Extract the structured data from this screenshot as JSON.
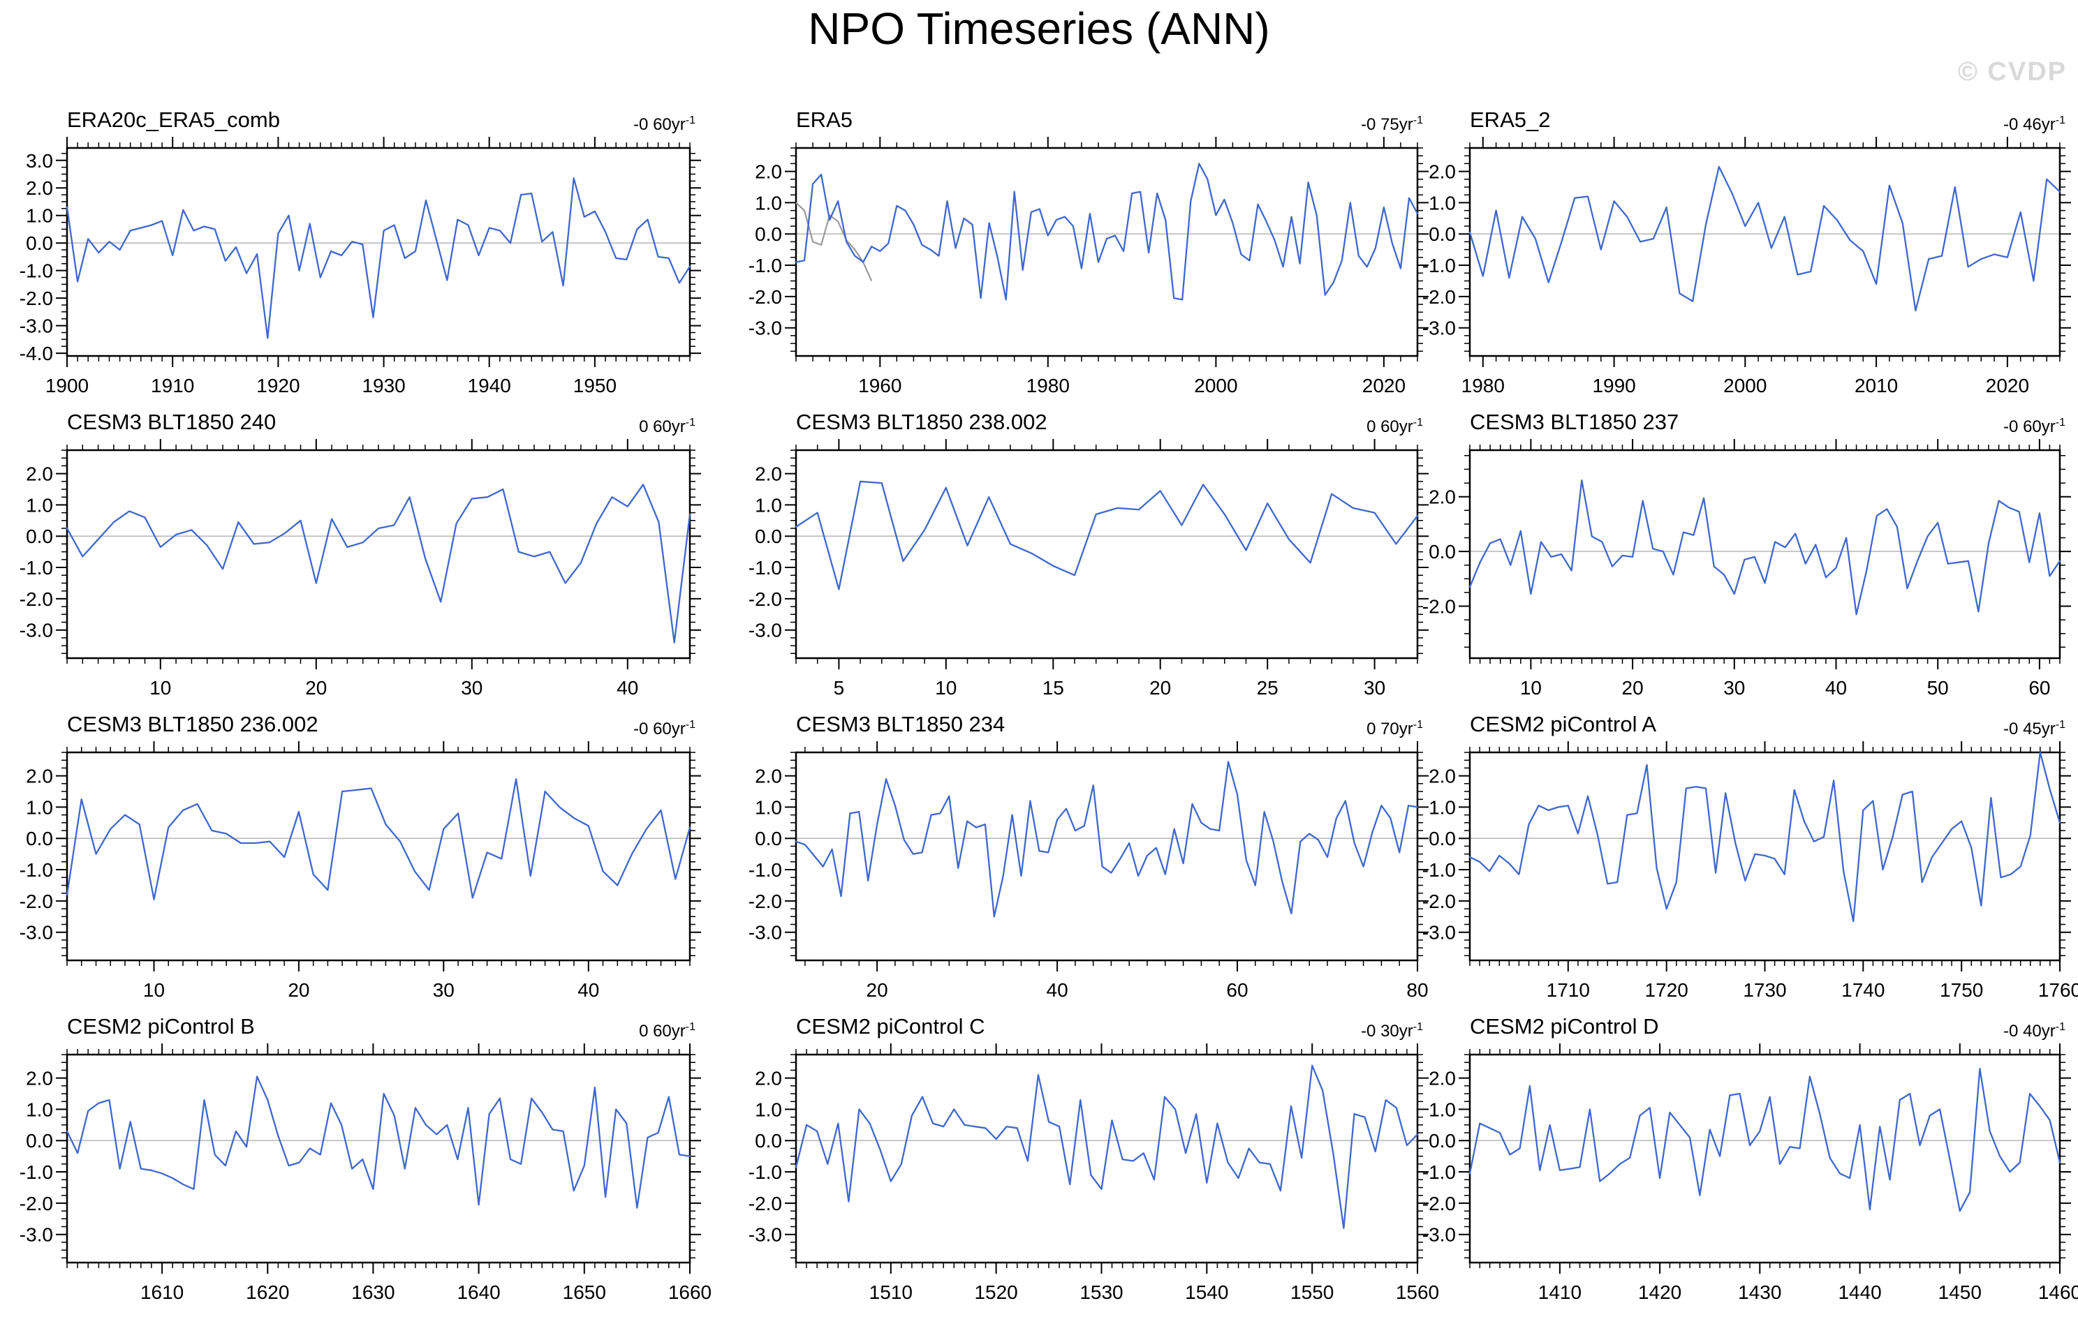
{
  "page": {
    "title": "NPO Timeseries (ANN)",
    "watermark": "© CVDP"
  },
  "chart_data": [
    {
      "type": "line",
      "title": "ERA20c_ERA5_comb",
      "trend_text": "-0 60yr",
      "trend_sup": "-1",
      "x_start": 1900,
      "x_end": 1959,
      "xticks": [
        1900,
        1910,
        1920,
        1930,
        1940,
        1950
      ],
      "x_minor": 1,
      "yticks": [
        3,
        2,
        1,
        0,
        -1,
        -2,
        -3,
        -4
      ],
      "y_minor": 0.25,
      "ylim": [
        -4.1,
        3.45
      ],
      "grid": false,
      "zero_line": true,
      "line_color": "#3E68CE",
      "values": [
        1.3,
        -1.4,
        0.15,
        -0.35,
        0.05,
        -0.25,
        0.45,
        0.55,
        0.65,
        0.8,
        -0.45,
        1.2,
        0.45,
        0.6,
        0.5,
        -0.65,
        -0.15,
        -1.1,
        -0.4,
        -3.45,
        0.35,
        1.0,
        -1.0,
        0.7,
        -1.25,
        -0.3,
        -0.45,
        0.05,
        -0.05,
        -2.7,
        0.45,
        0.65,
        -0.55,
        -0.3,
        1.55,
        0.1,
        -1.35,
        0.85,
        0.65,
        -0.45,
        0.55,
        0.45,
        0.0,
        1.75,
        1.8,
        0.05,
        0.4,
        -1.55,
        2.35,
        0.95,
        1.15,
        0.4,
        -0.55,
        -0.6,
        0.5,
        0.85,
        -0.5,
        -0.55,
        -1.45,
        -0.85
      ]
    },
    {
      "type": "line",
      "title": "ERA5",
      "trend_text": "-0 75yr",
      "trend_sup": "-1",
      "x_start": 1950,
      "x_end": 2024,
      "xticks": [
        1960,
        1980,
        2000,
        2020
      ],
      "x_minor": 2,
      "yticks": [
        2,
        1,
        0,
        -1,
        -2,
        -3
      ],
      "y_minor": 0.25,
      "ylim": [
        -3.9,
        2.75
      ],
      "grid": false,
      "zero_line": true,
      "line_color": "#3E68CE",
      "values": [
        -0.9,
        -0.85,
        1.6,
        1.9,
        0.45,
        1.05,
        -0.25,
        -0.7,
        -0.9,
        -0.4,
        -0.55,
        -0.3,
        0.9,
        0.75,
        0.3,
        -0.35,
        -0.5,
        -0.7,
        1.05,
        -0.45,
        0.5,
        0.3,
        -2.05,
        0.35,
        -0.75,
        -2.1,
        1.35,
        -1.15,
        0.7,
        0.8,
        -0.05,
        0.45,
        0.55,
        0.25,
        -1.1,
        0.65,
        -0.9,
        -0.15,
        -0.05,
        -0.55,
        1.3,
        1.35,
        -0.6,
        1.3,
        0.45,
        -2.05,
        -2.1,
        1.05,
        2.25,
        1.75,
        0.6,
        1.1,
        0.35,
        -0.65,
        -0.85,
        0.95,
        0.4,
        -0.2,
        -1.05,
        0.55,
        -0.95,
        1.65,
        0.6,
        -1.95,
        -1.55,
        -0.85,
        1.0,
        -0.7,
        -1.05,
        -0.45,
        0.85,
        -0.3,
        -1.1,
        1.15,
        0.65
      ],
      "extra_series": {
        "name": "overlap-segment",
        "color": "#9a9a9a",
        "x_start": 1950,
        "values": [
          1.0,
          0.75,
          -0.25,
          -0.35,
          0.6,
          0.4,
          -0.2,
          -0.5,
          -0.9,
          -1.5
        ]
      }
    },
    {
      "type": "line",
      "title": "ERA5_2",
      "trend_text": "-0 46yr",
      "trend_sup": "-1",
      "x_start": 1979,
      "x_end": 2024,
      "xticks": [
        1980,
        1990,
        2000,
        2010,
        2020
      ],
      "x_minor": 1,
      "yticks": [
        2,
        1,
        0,
        -1,
        -2,
        -3
      ],
      "y_minor": 0.25,
      "ylim": [
        -3.9,
        2.75
      ],
      "grid": false,
      "zero_line": true,
      "line_color": "#3E68CE",
      "values": [
        0.05,
        -1.35,
        0.75,
        -1.4,
        0.55,
        -0.15,
        -1.55,
        -0.25,
        1.15,
        1.2,
        -0.5,
        1.05,
        0.55,
        -0.25,
        -0.15,
        0.85,
        -1.9,
        -2.15,
        0.3,
        2.15,
        1.3,
        0.25,
        1.0,
        -0.45,
        0.55,
        -1.3,
        -1.2,
        0.9,
        0.45,
        -0.2,
        -0.55,
        -1.6,
        1.55,
        0.35,
        -2.45,
        -0.8,
        -0.7,
        1.5,
        -1.05,
        -0.8,
        -0.65,
        -0.75,
        0.7,
        -1.5,
        1.75,
        1.35
      ]
    },
    {
      "type": "line",
      "title": "CESM3 BLT1850 240",
      "trend_text": "0 60yr",
      "trend_sup": "-1",
      "x_start": 4,
      "x_end": 44,
      "xticks": [
        10,
        20,
        30,
        40
      ],
      "x_minor": 1,
      "yticks": [
        2,
        1,
        0,
        -1,
        -2,
        -3
      ],
      "y_minor": 0.25,
      "ylim": [
        -3.9,
        2.75
      ],
      "grid": false,
      "zero_line": true,
      "line_color": "#3E68CE",
      "values": [
        0.25,
        -0.65,
        -0.1,
        0.45,
        0.8,
        0.6,
        -0.35,
        0.05,
        0.2,
        -0.3,
        -1.05,
        0.45,
        -0.25,
        -0.2,
        0.1,
        0.5,
        -1.5,
        0.55,
        -0.35,
        -0.2,
        0.25,
        0.35,
        1.25,
        -0.7,
        -2.1,
        0.4,
        1.2,
        1.25,
        1.5,
        -0.5,
        -0.65,
        -0.5,
        -1.5,
        -0.85,
        0.4,
        1.25,
        0.95,
        1.65,
        0.45,
        -3.4,
        0.7
      ]
    },
    {
      "type": "line",
      "title": "CESM3 BLT1850 238.002",
      "trend_text": "0 60yr",
      "trend_sup": "-1",
      "x_start": 3,
      "x_end": 32,
      "xticks": [
        5,
        10,
        15,
        20,
        25,
        30
      ],
      "x_minor": 1,
      "yticks": [
        2,
        1,
        0,
        -1,
        -2,
        -3
      ],
      "y_minor": 0.25,
      "ylim": [
        -3.9,
        2.75
      ],
      "grid": false,
      "zero_line": true,
      "line_color": "#3E68CE",
      "values": [
        0.3,
        0.75,
        -1.7,
        1.75,
        1.7,
        -0.8,
        0.2,
        1.55,
        -0.3,
        1.25,
        -0.25,
        -0.55,
        -0.95,
        -1.25,
        0.7,
        0.9,
        0.85,
        1.45,
        0.35,
        1.65,
        0.7,
        -0.45,
        1.05,
        -0.1,
        -0.85,
        1.35,
        0.9,
        0.75,
        -0.25,
        0.65
      ]
    },
    {
      "type": "line",
      "title": "CESM3 BLT1850 237",
      "trend_text": "-0 60yr",
      "trend_sup": "-1",
      "x_start": 4,
      "x_end": 62,
      "xticks": [
        10,
        20,
        30,
        40,
        50,
        60
      ],
      "x_minor": 1,
      "yticks": [
        2,
        0,
        -2
      ],
      "y_minor": 0.5,
      "ylim": [
        -3.9,
        3.7
      ],
      "grid": false,
      "zero_line": true,
      "line_color": "#3E68CE",
      "values": [
        -1.3,
        -0.4,
        0.3,
        0.45,
        -0.5,
        0.75,
        -1.55,
        0.35,
        -0.2,
        -0.1,
        -0.7,
        2.6,
        0.55,
        0.35,
        -0.55,
        -0.15,
        -0.2,
        1.85,
        0.1,
        0.0,
        -0.85,
        0.7,
        0.6,
        1.95,
        -0.55,
        -0.85,
        -1.55,
        -0.3,
        -0.2,
        -1.15,
        0.35,
        0.15,
        0.65,
        -0.45,
        0.25,
        -0.95,
        -0.6,
        0.5,
        -2.3,
        -0.7,
        1.3,
        1.55,
        0.9,
        -1.35,
        -0.35,
        0.55,
        1.05,
        -0.45,
        -0.4,
        -0.35,
        -2.2,
        0.3,
        1.85,
        1.6,
        1.45,
        -0.4,
        1.4,
        -0.9,
        -0.35
      ]
    },
    {
      "type": "line",
      "title": "CESM3 BLT1850 236.002",
      "trend_text": "-0 60yr",
      "trend_sup": "-1",
      "x_start": 4,
      "x_end": 47,
      "xticks": [
        10,
        20,
        30,
        40
      ],
      "x_minor": 1,
      "yticks": [
        2,
        1,
        0,
        -1,
        -2,
        -3
      ],
      "y_minor": 0.25,
      "ylim": [
        -3.9,
        2.75
      ],
      "grid": false,
      "zero_line": true,
      "line_color": "#3E68CE",
      "values": [
        -1.8,
        1.25,
        -0.5,
        0.3,
        0.75,
        0.45,
        -1.95,
        0.35,
        0.9,
        1.1,
        0.25,
        0.15,
        -0.15,
        -0.15,
        -0.1,
        -0.6,
        0.85,
        -1.15,
        -1.65,
        1.5,
        1.55,
        1.6,
        0.45,
        -0.1,
        -1.05,
        -1.65,
        0.3,
        0.8,
        -1.9,
        -0.45,
        -0.65,
        1.9,
        -1.2,
        1.5,
        1.0,
        0.65,
        0.4,
        -1.05,
        -1.5,
        -0.5,
        0.3,
        0.9,
        -1.3,
        0.35
      ]
    },
    {
      "type": "line",
      "title": "CESM3 BLT1850 234",
      "trend_text": "0 70yr",
      "trend_sup": "-1",
      "x_start": 11,
      "x_end": 80,
      "xticks": [
        20,
        40,
        60,
        80
      ],
      "x_minor": 2,
      "yticks": [
        2,
        1,
        0,
        -1,
        -2,
        -3
      ],
      "y_minor": 0.25,
      "ylim": [
        -3.9,
        2.75
      ],
      "grid": false,
      "zero_line": true,
      "line_color": "#3E68CE",
      "values": [
        -0.1,
        -0.2,
        -0.55,
        -0.9,
        -0.35,
        -1.85,
        0.8,
        0.85,
        -1.35,
        0.45,
        1.9,
        1.05,
        -0.05,
        -0.5,
        -0.45,
        0.75,
        0.8,
        1.35,
        -0.95,
        0.55,
        0.35,
        0.45,
        -2.5,
        -1.2,
        0.75,
        -1.2,
        1.2,
        -0.4,
        -0.45,
        0.6,
        0.95,
        0.25,
        0.4,
        1.7,
        -0.9,
        -1.1,
        -0.65,
        -0.15,
        -1.2,
        -0.55,
        -0.3,
        -1.15,
        0.3,
        -0.8,
        1.1,
        0.5,
        0.3,
        0.25,
        2.45,
        1.4,
        -0.7,
        -1.5,
        0.85,
        -0.1,
        -1.4,
        -2.4,
        -0.1,
        0.15,
        -0.05,
        -0.6,
        0.65,
        1.2,
        -0.15,
        -0.9,
        0.2,
        1.05,
        0.65,
        -0.45,
        1.05,
        1.0
      ]
    },
    {
      "type": "line",
      "title": "CESM2 piControl A",
      "trend_text": "-0 45yr",
      "trend_sup": "-1",
      "x_start": 1700,
      "x_end": 1760,
      "xticks": [
        1710,
        1720,
        1730,
        1740,
        1750,
        1760
      ],
      "x_minor": 1,
      "yticks": [
        2,
        1,
        0,
        -1,
        -2,
        -3
      ],
      "y_minor": 0.25,
      "ylim": [
        -3.9,
        2.75
      ],
      "grid": false,
      "zero_line": true,
      "line_color": "#3E68CE",
      "values": [
        -0.6,
        -0.75,
        -1.05,
        -0.55,
        -0.8,
        -1.15,
        0.45,
        1.05,
        0.9,
        1.0,
        1.05,
        0.15,
        1.35,
        0.1,
        -1.45,
        -1.4,
        0.75,
        0.8,
        2.35,
        -0.95,
        -2.25,
        -1.4,
        1.6,
        1.65,
        1.6,
        -1.1,
        1.45,
        -0.15,
        -1.35,
        -0.5,
        -0.55,
        -0.65,
        -1.15,
        1.55,
        0.55,
        -0.1,
        0.05,
        1.85,
        -1.05,
        -2.65,
        0.9,
        1.2,
        -1.0,
        0.05,
        1.4,
        1.5,
        -1.4,
        -0.6,
        -0.15,
        0.3,
        0.55,
        -0.3,
        -2.15,
        1.3,
        -1.25,
        -1.15,
        -0.9,
        0.1,
        2.75,
        1.55,
        0.5
      ]
    },
    {
      "type": "line",
      "title": "CESM2 piControl B",
      "trend_text": "0 60yr",
      "trend_sup": "-1",
      "x_start": 1601,
      "x_end": 1660,
      "xticks": [
        1610,
        1620,
        1630,
        1640,
        1650,
        1660
      ],
      "x_minor": 1,
      "yticks": [
        2,
        1,
        0,
        -1,
        -2,
        -3
      ],
      "y_minor": 0.25,
      "ylim": [
        -3.9,
        2.75
      ],
      "grid": false,
      "zero_line": true,
      "line_color": "#3E68CE",
      "values": [
        0.3,
        -0.4,
        0.95,
        1.2,
        1.3,
        -0.9,
        0.6,
        -0.9,
        -0.95,
        -1.05,
        -1.2,
        -1.4,
        -1.55,
        1.3,
        -0.45,
        -0.8,
        0.3,
        -0.2,
        2.05,
        1.3,
        0.15,
        -0.8,
        -0.7,
        -0.25,
        -0.45,
        1.2,
        0.5,
        -0.9,
        -0.6,
        -1.55,
        1.5,
        0.8,
        -0.9,
        1.05,
        0.5,
        0.2,
        0.5,
        -0.6,
        1.05,
        -2.05,
        0.85,
        1.35,
        -0.6,
        -0.75,
        1.35,
        0.9,
        0.35,
        0.3,
        -1.6,
        -0.8,
        1.7,
        -1.8,
        1.0,
        0.55,
        -2.15,
        0.1,
        0.25,
        1.4,
        -0.45,
        -0.5
      ]
    },
    {
      "type": "line",
      "title": "CESM2 piControl C",
      "trend_text": "-0 30yr",
      "trend_sup": "-1",
      "x_start": 1501,
      "x_end": 1560,
      "xticks": [
        1510,
        1520,
        1530,
        1540,
        1550,
        1560
      ],
      "x_minor": 1,
      "yticks": [
        2,
        1,
        0,
        -1,
        -2,
        -3
      ],
      "y_minor": 0.25,
      "ylim": [
        -3.9,
        2.75
      ],
      "grid": false,
      "zero_line": true,
      "line_color": "#3E68CE",
      "values": [
        -0.85,
        0.5,
        0.3,
        -0.75,
        0.55,
        -1.95,
        1.0,
        0.55,
        -0.3,
        -1.3,
        -0.75,
        0.8,
        1.4,
        0.55,
        0.45,
        1.0,
        0.5,
        0.45,
        0.4,
        0.05,
        0.45,
        0.4,
        -0.65,
        2.1,
        0.6,
        0.45,
        -1.4,
        1.3,
        -1.1,
        -1.55,
        0.65,
        -0.6,
        -0.65,
        -0.4,
        -1.25,
        1.4,
        1.0,
        -0.4,
        0.85,
        -1.35,
        0.55,
        -0.7,
        -1.2,
        -0.25,
        -0.7,
        -0.75,
        -1.6,
        1.1,
        -0.55,
        2.4,
        1.6,
        -0.4,
        -2.8,
        0.85,
        0.75,
        -0.35,
        1.3,
        1.05,
        -0.15,
        0.2
      ]
    },
    {
      "type": "line",
      "title": "CESM2 piControl D",
      "trend_text": "-0 40yr",
      "trend_sup": "-1",
      "x_start": 1401,
      "x_end": 1460,
      "xticks": [
        1410,
        1420,
        1430,
        1440,
        1450,
        1460
      ],
      "x_minor": 1,
      "yticks": [
        2,
        1,
        0,
        -1,
        -2,
        -3
      ],
      "y_minor": 0.25,
      "ylim": [
        -3.9,
        2.75
      ],
      "grid": false,
      "zero_line": true,
      "line_color": "#3E68CE",
      "values": [
        -1.05,
        0.55,
        0.4,
        0.25,
        -0.45,
        -0.25,
        1.75,
        -0.95,
        0.5,
        -0.95,
        -0.9,
        -0.85,
        1.0,
        -1.3,
        -1.05,
        -0.75,
        -0.55,
        0.8,
        1.05,
        -1.2,
        0.9,
        0.5,
        0.1,
        -1.75,
        0.35,
        -0.5,
        1.45,
        1.5,
        -0.15,
        0.3,
        1.4,
        -0.75,
        -0.2,
        -0.25,
        2.05,
        0.85,
        -0.55,
        -1.05,
        -1.2,
        0.5,
        -2.2,
        0.45,
        -1.25,
        1.3,
        1.5,
        -0.15,
        0.8,
        1.0,
        -0.6,
        -2.25,
        -1.65,
        2.3,
        0.3,
        -0.5,
        -1.0,
        -0.7,
        1.5,
        1.1,
        0.65,
        -0.7
      ]
    }
  ]
}
